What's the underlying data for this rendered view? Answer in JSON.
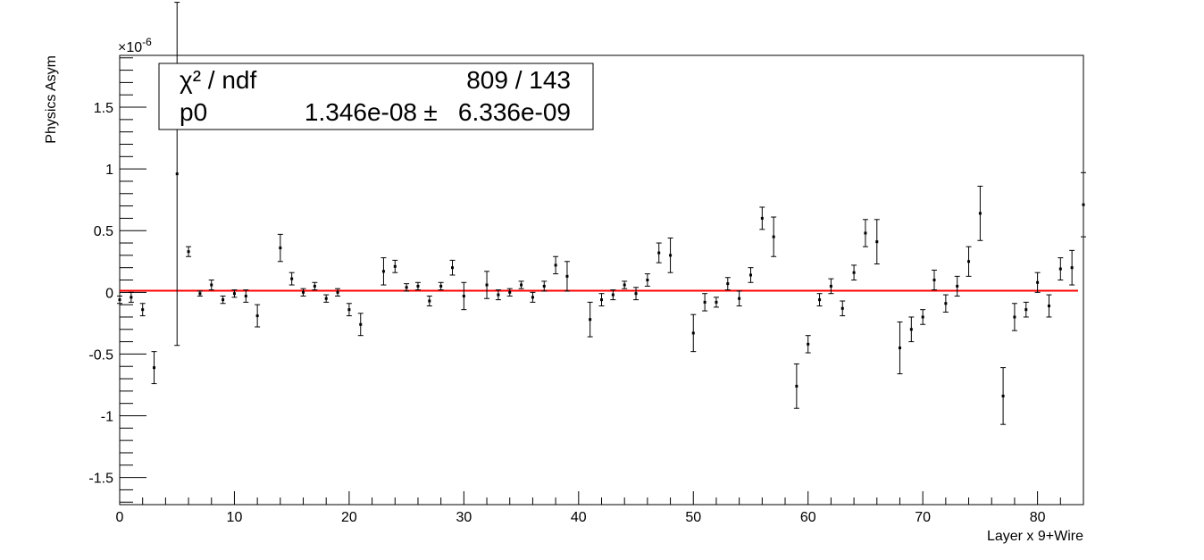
{
  "chart_data": {
    "type": "scatter",
    "subtype": "errorbar-with-fit",
    "xlabel": "Layer x 9+Wire",
    "ylabel": "Physics Asym",
    "y_exponent_label": "×10",
    "y_exponent_power": "-6",
    "xlim": [
      0,
      84
    ],
    "ylim": [
      -1.72,
      1.92
    ],
    "x_major_ticks": [
      0,
      10,
      20,
      30,
      40,
      50,
      60,
      70,
      80
    ],
    "x_tick_labels": [
      "0",
      "10",
      "20",
      "30",
      "40",
      "50",
      "60",
      "70",
      "80"
    ],
    "y_major_ticks": [
      -1.5,
      -1,
      -0.5,
      0,
      0.5,
      1,
      1.5
    ],
    "y_tick_labels": [
      "-1.5",
      "-1",
      "-0.5",
      "0",
      "0.5",
      "1",
      "1.5"
    ],
    "grid": false,
    "fit_line": {
      "color": "#ff0000",
      "value": 0.01346,
      "x_range": [
        0,
        84
      ]
    },
    "stats_box": {
      "row1_label": "χ² / ndf",
      "row1_value": "809 / 143",
      "row2_label": "p0",
      "row2_value": "1.346e-08",
      "row2_pm": "±",
      "row2_error": "6.336e-09"
    },
    "series": [
      {
        "marker_color": "#000000",
        "points": [
          {
            "x": 0,
            "y": -0.06,
            "e": 0.03
          },
          {
            "x": 1,
            "y": -0.04,
            "e": 0.04
          },
          {
            "x": 2,
            "y": -0.14,
            "e": 0.05
          },
          {
            "x": 3,
            "y": -0.61,
            "e": 0.13
          },
          {
            "x": 5,
            "y": 0.96,
            "e": 1.39
          },
          {
            "x": 6,
            "y": 0.33,
            "e": 0.04
          },
          {
            "x": 7,
            "y": -0.01,
            "e": 0.02
          },
          {
            "x": 8,
            "y": 0.06,
            "e": 0.04
          },
          {
            "x": 9,
            "y": -0.06,
            "e": 0.03
          },
          {
            "x": 10,
            "y": -0.01,
            "e": 0.03
          },
          {
            "x": 11,
            "y": -0.03,
            "e": 0.05
          },
          {
            "x": 12,
            "y": -0.19,
            "e": 0.09
          },
          {
            "x": 14,
            "y": 0.36,
            "e": 0.11
          },
          {
            "x": 15,
            "y": 0.11,
            "e": 0.05
          },
          {
            "x": 16,
            "y": 0.0,
            "e": 0.03
          },
          {
            "x": 17,
            "y": 0.05,
            "e": 0.03
          },
          {
            "x": 18,
            "y": -0.05,
            "e": 0.03
          },
          {
            "x": 19,
            "y": 0.0,
            "e": 0.03
          },
          {
            "x": 20,
            "y": -0.14,
            "e": 0.05
          },
          {
            "x": 21,
            "y": -0.26,
            "e": 0.09
          },
          {
            "x": 23,
            "y": 0.17,
            "e": 0.11
          },
          {
            "x": 24,
            "y": 0.21,
            "e": 0.05
          },
          {
            "x": 25,
            "y": 0.04,
            "e": 0.03
          },
          {
            "x": 26,
            "y": 0.05,
            "e": 0.03
          },
          {
            "x": 27,
            "y": -0.07,
            "e": 0.04
          },
          {
            "x": 28,
            "y": 0.05,
            "e": 0.03
          },
          {
            "x": 29,
            "y": 0.2,
            "e": 0.06
          },
          {
            "x": 30,
            "y": -0.03,
            "e": 0.11
          },
          {
            "x": 32,
            "y": 0.06,
            "e": 0.11
          },
          {
            "x": 33,
            "y": -0.02,
            "e": 0.04
          },
          {
            "x": 34,
            "y": 0.0,
            "e": 0.03
          },
          {
            "x": 35,
            "y": 0.06,
            "e": 0.03
          },
          {
            "x": 36,
            "y": -0.04,
            "e": 0.04
          },
          {
            "x": 37,
            "y": 0.05,
            "e": 0.04
          },
          {
            "x": 38,
            "y": 0.22,
            "e": 0.07
          },
          {
            "x": 39,
            "y": 0.13,
            "e": 0.12
          },
          {
            "x": 41,
            "y": -0.22,
            "e": 0.14
          },
          {
            "x": 42,
            "y": -0.06,
            "e": 0.05
          },
          {
            "x": 43,
            "y": -0.02,
            "e": 0.04
          },
          {
            "x": 44,
            "y": 0.06,
            "e": 0.03
          },
          {
            "x": 45,
            "y": -0.01,
            "e": 0.05
          },
          {
            "x": 46,
            "y": 0.1,
            "e": 0.05
          },
          {
            "x": 47,
            "y": 0.32,
            "e": 0.08
          },
          {
            "x": 48,
            "y": 0.3,
            "e": 0.14
          },
          {
            "x": 50,
            "y": -0.33,
            "e": 0.15
          },
          {
            "x": 51,
            "y": -0.08,
            "e": 0.07
          },
          {
            "x": 52,
            "y": -0.08,
            "e": 0.04
          },
          {
            "x": 53,
            "y": 0.07,
            "e": 0.05
          },
          {
            "x": 54,
            "y": -0.05,
            "e": 0.06
          },
          {
            "x": 55,
            "y": 0.14,
            "e": 0.06
          },
          {
            "x": 56,
            "y": 0.6,
            "e": 0.09
          },
          {
            "x": 57,
            "y": 0.45,
            "e": 0.16
          },
          {
            "x": 59,
            "y": -0.76,
            "e": 0.18
          },
          {
            "x": 60,
            "y": -0.42,
            "e": 0.07
          },
          {
            "x": 61,
            "y": -0.06,
            "e": 0.05
          },
          {
            "x": 62,
            "y": 0.05,
            "e": 0.06
          },
          {
            "x": 63,
            "y": -0.13,
            "e": 0.06
          },
          {
            "x": 64,
            "y": 0.16,
            "e": 0.06
          },
          {
            "x": 65,
            "y": 0.48,
            "e": 0.11
          },
          {
            "x": 66,
            "y": 0.41,
            "e": 0.18
          },
          {
            "x": 68,
            "y": -0.45,
            "e": 0.21
          },
          {
            "x": 69,
            "y": -0.3,
            "e": 0.1
          },
          {
            "x": 70,
            "y": -0.2,
            "e": 0.06
          },
          {
            "x": 71,
            "y": 0.1,
            "e": 0.08
          },
          {
            "x": 72,
            "y": -0.09,
            "e": 0.07
          },
          {
            "x": 73,
            "y": 0.05,
            "e": 0.08
          },
          {
            "x": 74,
            "y": 0.25,
            "e": 0.12
          },
          {
            "x": 75,
            "y": 0.64,
            "e": 0.22
          },
          {
            "x": 77,
            "y": -0.84,
            "e": 0.23
          },
          {
            "x": 78,
            "y": -0.2,
            "e": 0.11
          },
          {
            "x": 79,
            "y": -0.14,
            "e": 0.06
          },
          {
            "x": 80,
            "y": 0.08,
            "e": 0.08
          },
          {
            "x": 81,
            "y": -0.11,
            "e": 0.09
          },
          {
            "x": 82,
            "y": 0.19,
            "e": 0.09
          },
          {
            "x": 83,
            "y": 0.2,
            "e": 0.14
          },
          {
            "x": 84,
            "y": 0.71,
            "e": 0.26
          }
        ]
      }
    ]
  }
}
